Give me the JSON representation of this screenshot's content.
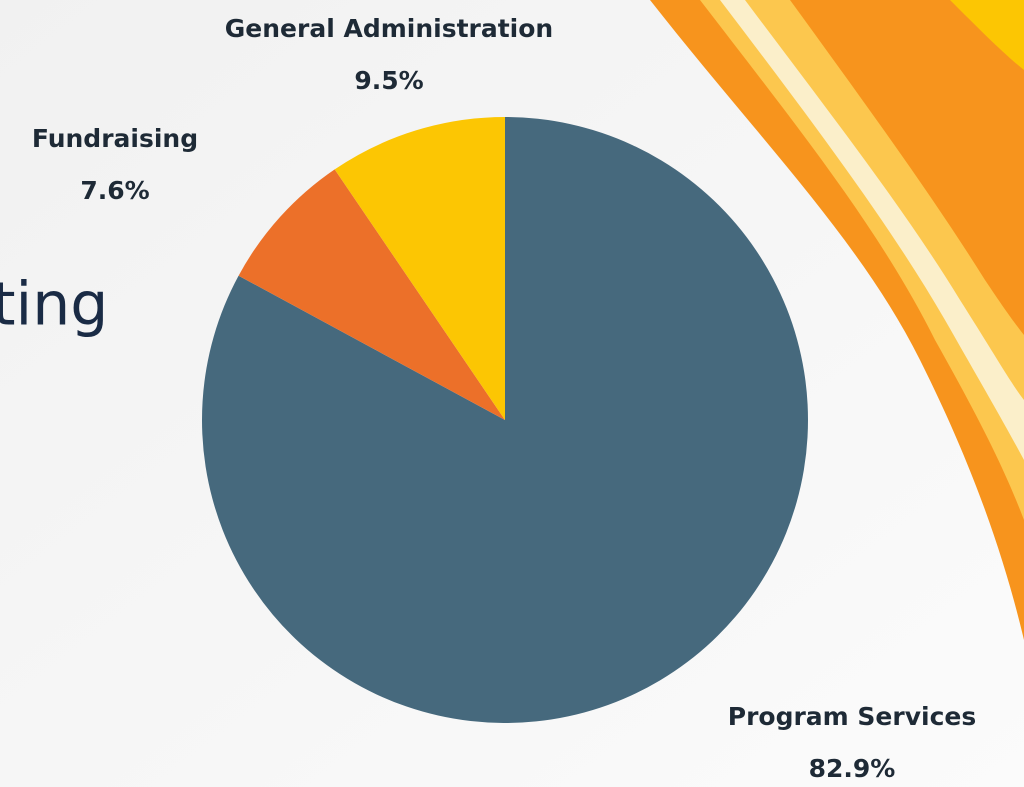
{
  "chart_data": {
    "type": "pie",
    "background_text": "ting",
    "categories": [
      "Program Services",
      "Fundraising",
      "General Administration"
    ],
    "values": [
      82.9,
      7.6,
      9.5
    ],
    "value_labels": [
      "82.9%",
      "7.6%",
      "9.5%"
    ],
    "colors": [
      "#46697d",
      "#ec7029",
      "#fcc603"
    ]
  }
}
